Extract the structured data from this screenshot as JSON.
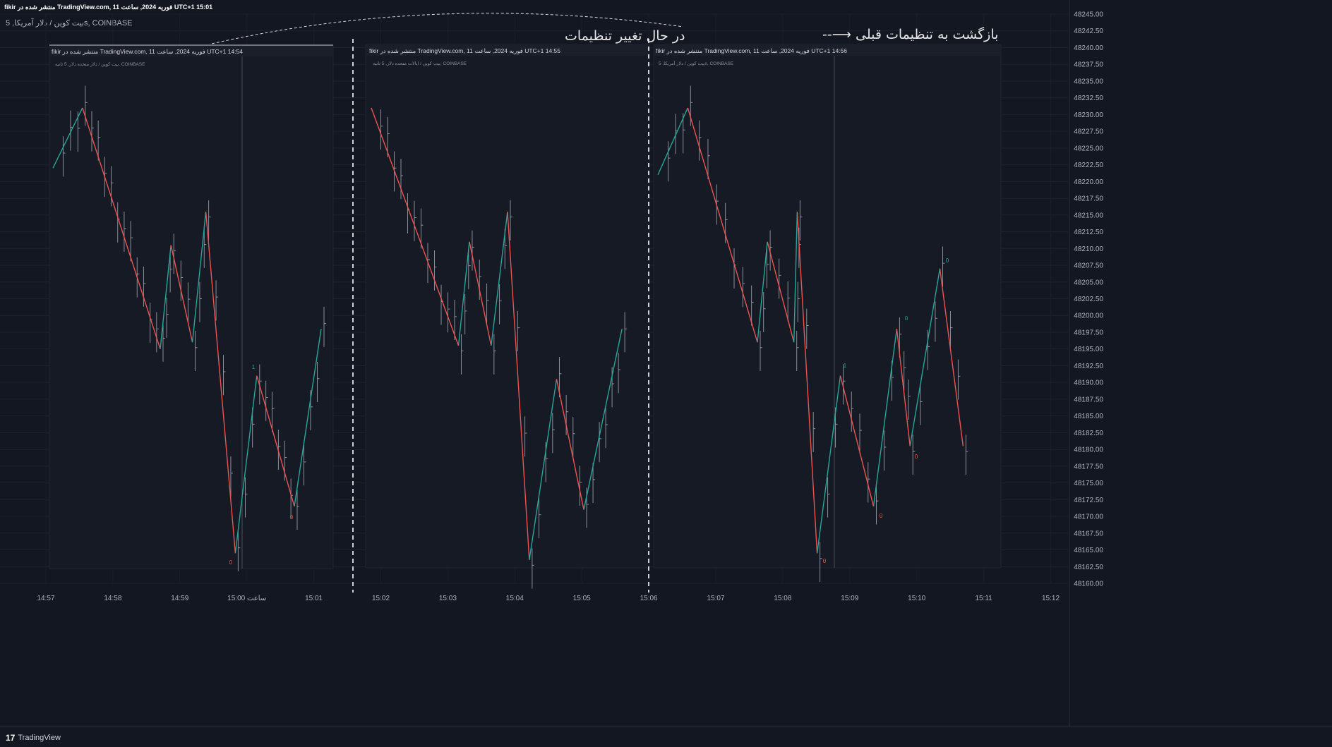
{
  "header": {
    "publish_line": "fikir منتشر شده در TradingView.com, 11 فوریه 2024, ساعت UTC+1 15:01",
    "symbol_line": "بیت کوین / دلار آمریکا, 5s, COINBASE"
  },
  "annotations": {
    "changing": "در حال تغییر تنظیمات",
    "reverting": "بازگشت به تنظیمات قبلی ⟶--"
  },
  "panels": [
    {
      "header": "fikir منتشر شده در TradingView.com, 11 فوریه 2024, ساعت UTC+1 14:54",
      "subheader": "بیت کوین / دلار متحده دلار, 5 ثانیه, COINBASE"
    },
    {
      "header": "fikir منتشر شده در TradingView.com, 11 فوریه 2024, ساعت UTC+1 14:55",
      "subheader": "بیت کوین / ایالات متحده دلار, 5 ثانیه, COINBASE"
    },
    {
      "header": "fikir منتشر شده در TradingView.com, 11 فوریه 2024, ساعت UTC+1 14:56",
      "subheader": "بیت کوین / دلار آمریکا, 5s, COINBASE"
    }
  ],
  "footer": {
    "brand": "TradingView",
    "logo": "17"
  },
  "colors": {
    "background": "#131722",
    "panel": "#161a25",
    "up": "#26a69a",
    "down": "#ef5350",
    "bar": "#b2b5be",
    "text": "#b2b5be"
  },
  "chart_data": {
    "type": "line",
    "price_axis": {
      "ticks": [
        "48245.00",
        "48242.50",
        "48240.00",
        "48237.50",
        "48235.00",
        "48232.50",
        "48230.00",
        "48227.50",
        "48225.00",
        "48222.50",
        "48220.00",
        "48217.50",
        "48215.00",
        "48212.50",
        "48210.00",
        "48207.50",
        "48205.00",
        "48202.50",
        "48200.00",
        "48197.50",
        "48195.00",
        "48192.50",
        "48190.00",
        "48187.50",
        "48185.00",
        "48182.50",
        "48180.00",
        "48177.50",
        "48175.00",
        "48172.50",
        "48170.00",
        "48167.50",
        "48165.00",
        "48162.50",
        "48160.00"
      ],
      "min": 48160.0,
      "max": 48245.0
    },
    "time_axis": {
      "ticks": [
        "14:57",
        "14:58",
        "14:59",
        "ساعت 15:00",
        "15:01",
        "15:02",
        "15:03",
        "15:04",
        "15:05",
        "15:06",
        "15:07",
        "15:08",
        "15:09",
        "15:10",
        "15:11",
        "15:12"
      ]
    },
    "zigzag_labels": [
      {
        "panel": 0,
        "text": "1",
        "color": "up"
      },
      {
        "panel": 0,
        "text": "0",
        "color": "down"
      },
      {
        "panel": 0,
        "text": "0",
        "color": "down"
      },
      {
        "panel": 2,
        "text": "1",
        "color": "up"
      },
      {
        "panel": 2,
        "text": "0",
        "color": "up"
      },
      {
        "panel": 2,
        "text": "0",
        "color": "up"
      },
      {
        "panel": 2,
        "text": "0",
        "color": "down"
      },
      {
        "panel": 2,
        "text": "0",
        "color": "down"
      },
      {
        "panel": 2,
        "text": "0",
        "color": "down"
      }
    ],
    "series": [
      {
        "panel": 0,
        "zigzag": [
          [
            0,
            48222
          ],
          [
            0.11,
            48231
          ],
          [
            0.4,
            48195
          ],
          [
            0.44,
            48210.5
          ],
          [
            0.52,
            48196
          ],
          [
            0.57,
            48215.5
          ],
          [
            0.68,
            48164.5
          ],
          [
            0.76,
            48191
          ],
          [
            0.9,
            48171.5
          ],
          [
            1.0,
            48198
          ]
        ]
      },
      {
        "panel": 1,
        "zigzag": [
          [
            0,
            48231
          ],
          [
            0.32,
            48195.5
          ],
          [
            0.36,
            48211
          ],
          [
            0.44,
            48195.5
          ],
          [
            0.5,
            48215.5
          ],
          [
            0.58,
            48163.5
          ],
          [
            0.68,
            48190.5
          ],
          [
            0.78,
            48171.0
          ],
          [
            0.92,
            48198
          ]
        ]
      },
      {
        "panel": 2,
        "zigzag": [
          [
            0,
            48221
          ],
          [
            0.09,
            48231
          ],
          [
            0.3,
            48196
          ],
          [
            0.33,
            48211
          ],
          [
            0.41,
            48196
          ],
          [
            0.42,
            48215.5
          ],
          [
            0.48,
            48164.5
          ],
          [
            0.55,
            48191
          ],
          [
            0.65,
            48171.5
          ],
          [
            0.72,
            48198
          ],
          [
            0.76,
            48180.5
          ],
          [
            0.85,
            48207
          ],
          [
            0.92,
            48180.5
          ]
        ]
      }
    ]
  }
}
